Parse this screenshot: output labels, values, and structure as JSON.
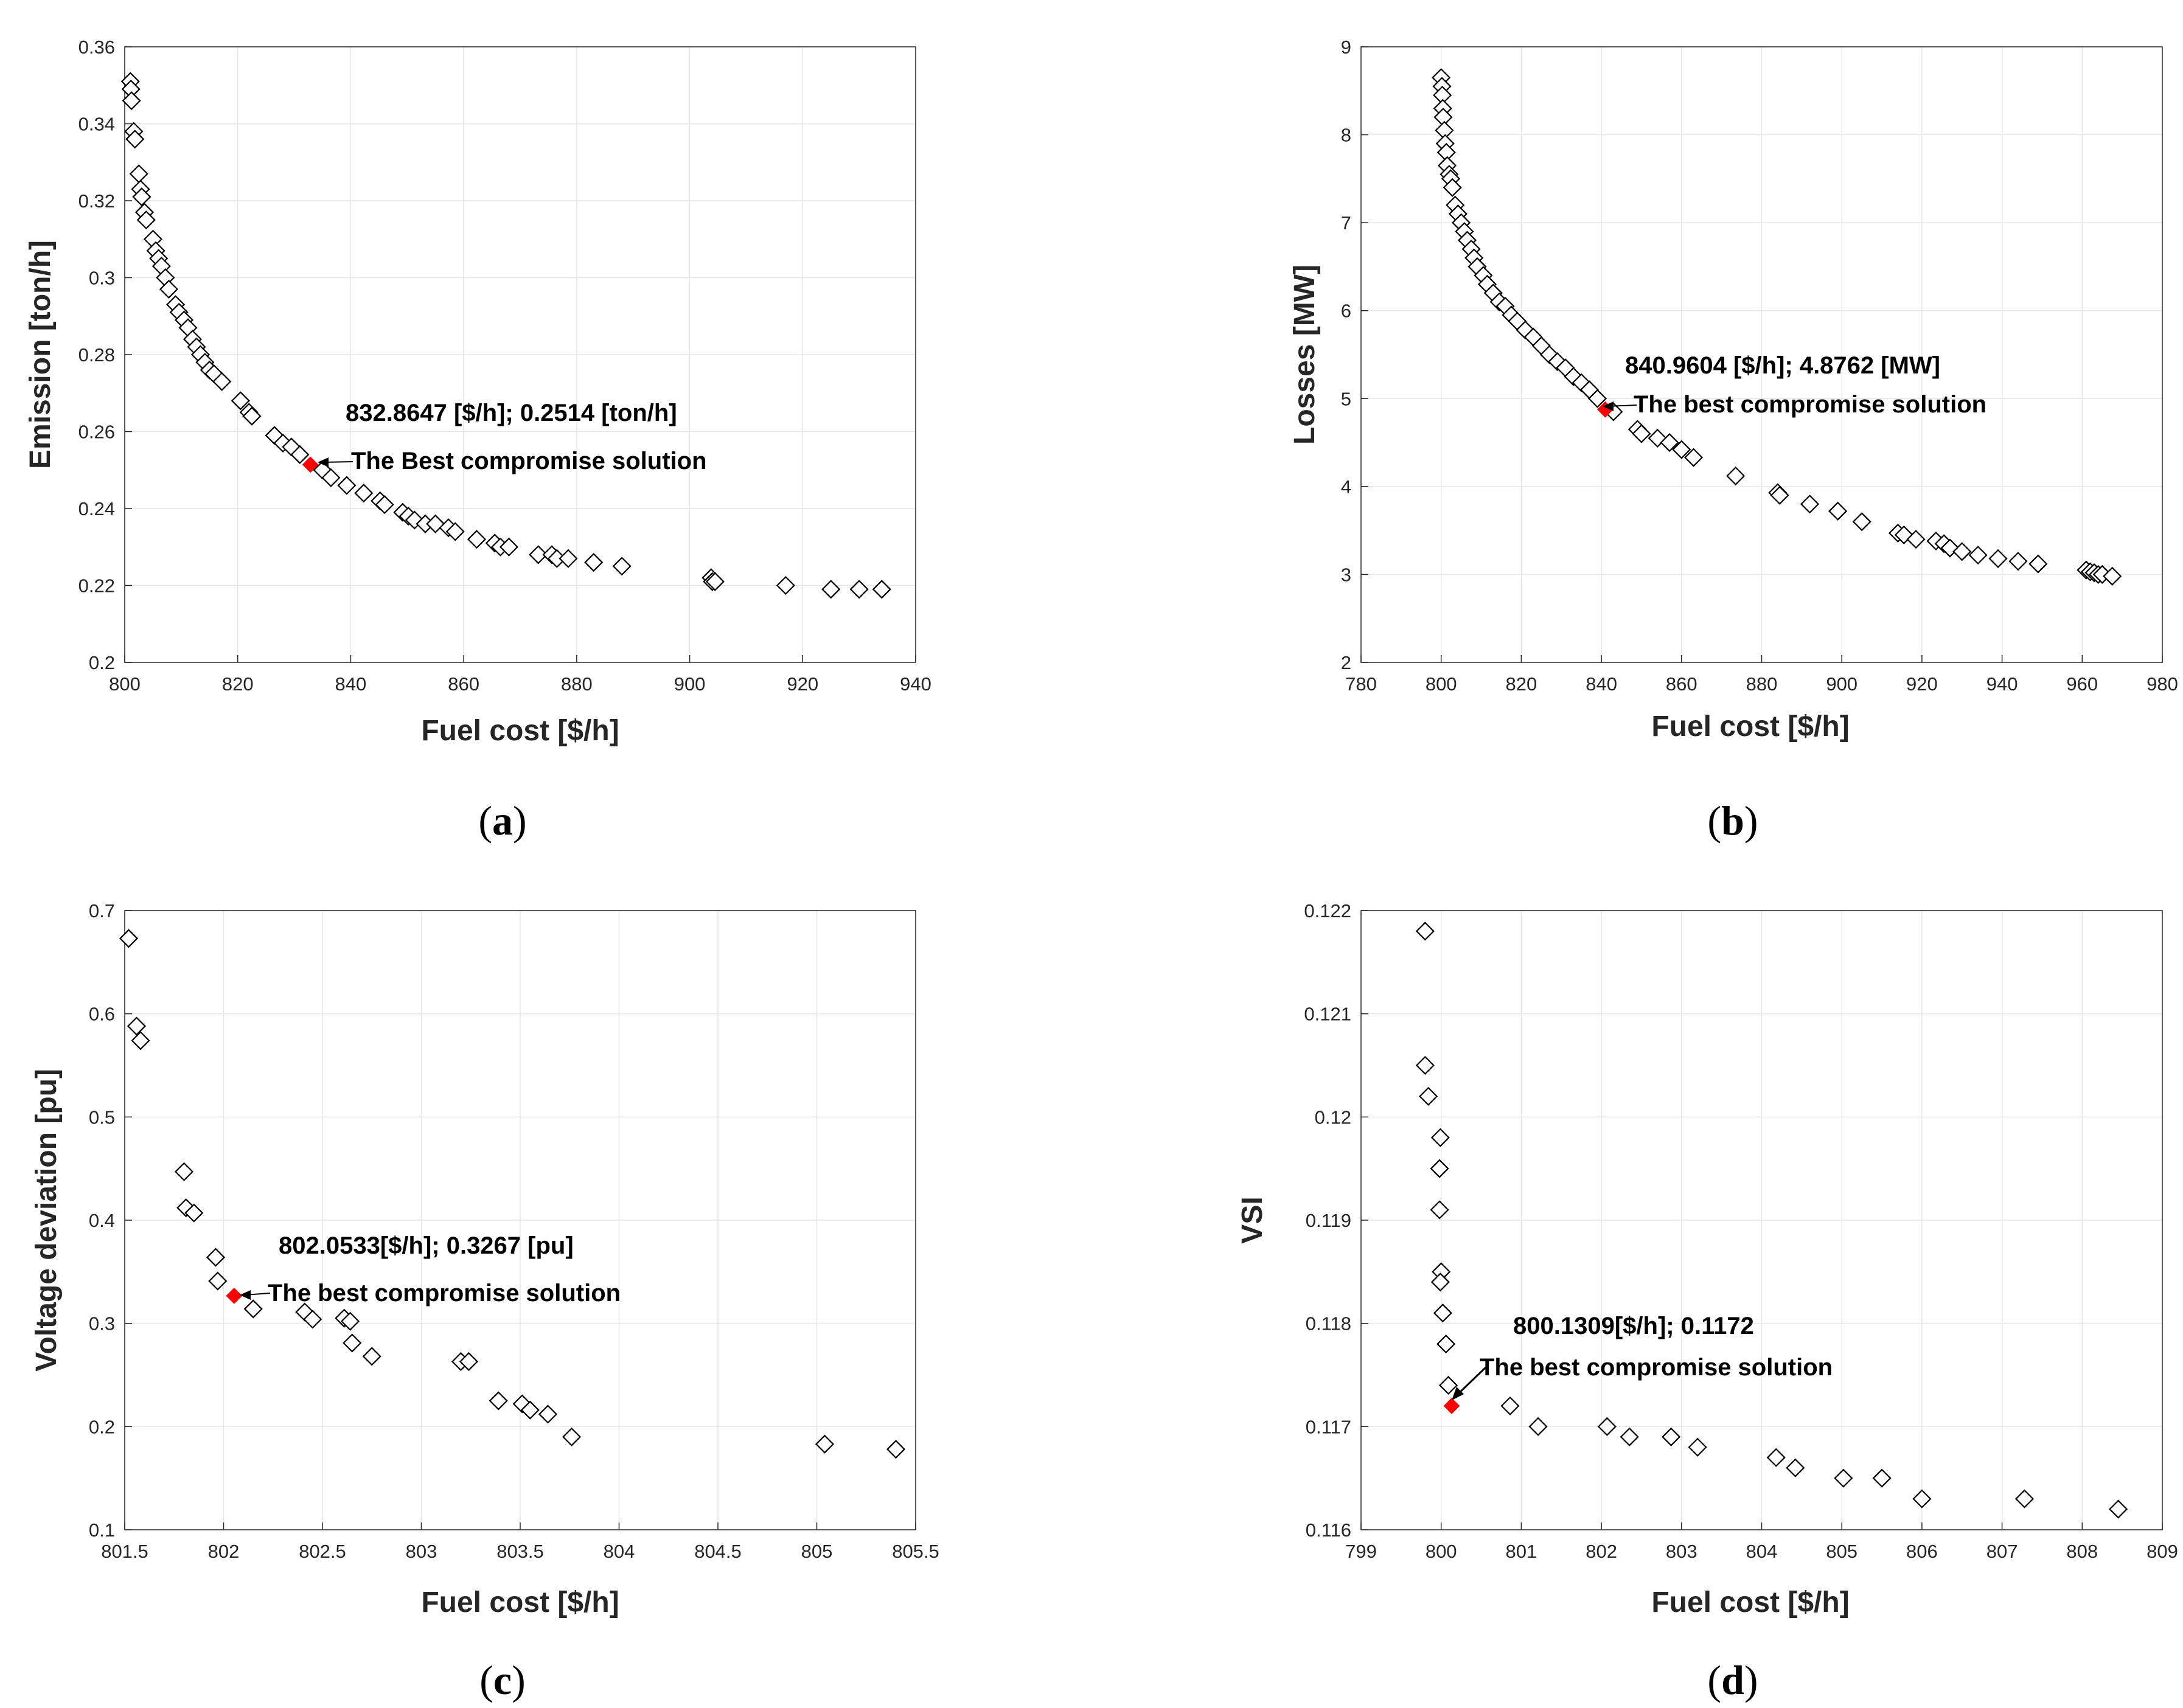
{
  "colors": {
    "marker": "#000000",
    "best": "#ff0000",
    "grid": "#e6e6e6",
    "axis": "#262626"
  },
  "chart_data": [
    {
      "id": "a",
      "type": "scatter",
      "panel_label": "a",
      "xlabel": "Fuel cost [$/h]",
      "ylabel": "Emission [ton/h]",
      "xlim": [
        800,
        940
      ],
      "ylim": [
        0.2,
        0.36
      ],
      "xticks": [
        800,
        820,
        840,
        860,
        880,
        900,
        920,
        940
      ],
      "yticks": [
        0.2,
        0.22,
        0.24,
        0.26,
        0.28,
        0.3,
        0.32,
        0.34,
        0.36
      ],
      "xtick_labels": [
        "800",
        "820",
        "840",
        "860",
        "880",
        "900",
        "920",
        "940"
      ],
      "ytick_labels": [
        "0.2",
        "0.22",
        "0.24",
        "0.26",
        "0.28",
        "0.3",
        "0.32",
        "0.34",
        "0.36"
      ],
      "points": [
        [
          801,
          0.351
        ],
        [
          801.1,
          0.349
        ],
        [
          801.2,
          0.346
        ],
        [
          801.6,
          0.338
        ],
        [
          801.8,
          0.336
        ],
        [
          802.5,
          0.327
        ],
        [
          802.8,
          0.323
        ],
        [
          803,
          0.321
        ],
        [
          803.5,
          0.317
        ],
        [
          803.8,
          0.315
        ],
        [
          805,
          0.31
        ],
        [
          805.5,
          0.307
        ],
        [
          806,
          0.305
        ],
        [
          806.5,
          0.303
        ],
        [
          807.2,
          0.3
        ],
        [
          807.8,
          0.297
        ],
        [
          809,
          0.293
        ],
        [
          809.6,
          0.291
        ],
        [
          810.5,
          0.289
        ],
        [
          811.2,
          0.287
        ],
        [
          812,
          0.284
        ],
        [
          812.7,
          0.282
        ],
        [
          813.4,
          0.28
        ],
        [
          814.2,
          0.278
        ],
        [
          815,
          0.276
        ],
        [
          815.8,
          0.275
        ],
        [
          817.2,
          0.273
        ],
        [
          820.5,
          0.268
        ],
        [
          822,
          0.265
        ],
        [
          822.5,
          0.264
        ],
        [
          826.5,
          0.259
        ],
        [
          828,
          0.257
        ],
        [
          829.5,
          0.256
        ],
        [
          831,
          0.254
        ],
        [
          835,
          0.25
        ],
        [
          836.5,
          0.248
        ],
        [
          839.3,
          0.246
        ],
        [
          842.3,
          0.244
        ],
        [
          845.2,
          0.242
        ],
        [
          846,
          0.241
        ],
        [
          849.2,
          0.239
        ],
        [
          850.2,
          0.238
        ],
        [
          851.3,
          0.237
        ],
        [
          853.2,
          0.236
        ],
        [
          855,
          0.236
        ],
        [
          857.3,
          0.235
        ],
        [
          858.5,
          0.234
        ],
        [
          862.3,
          0.232
        ],
        [
          865.5,
          0.231
        ],
        [
          866.5,
          0.23
        ],
        [
          868,
          0.23
        ],
        [
          873.2,
          0.228
        ],
        [
          875.6,
          0.228
        ],
        [
          876.5,
          0.227
        ],
        [
          878.5,
          0.227
        ],
        [
          883,
          0.226
        ],
        [
          888,
          0.225
        ],
        [
          903.8,
          0.222
        ],
        [
          904,
          0.221
        ],
        [
          904.5,
          0.221
        ],
        [
          917,
          0.22
        ],
        [
          925,
          0.219
        ],
        [
          930,
          0.219
        ],
        [
          934,
          0.219
        ]
      ],
      "best": [
        832.8647,
        0.2514
      ],
      "annotation_value": "832.8647 [$/h]; 0.2514 [ton/h]",
      "annotation_text": "The Best compromise solution"
    },
    {
      "id": "b",
      "type": "scatter",
      "panel_label": "b",
      "xlabel": "Fuel cost [$/h]",
      "ylabel": "Losses [MW]",
      "xlim": [
        780,
        980
      ],
      "ylim": [
        2,
        9
      ],
      "xticks": [
        780,
        800,
        820,
        840,
        860,
        880,
        900,
        920,
        940,
        960,
        980
      ],
      "yticks": [
        2,
        3,
        4,
        5,
        6,
        7,
        8,
        9
      ],
      "xtick_labels": [
        "780",
        "800",
        "820",
        "840",
        "860",
        "880",
        "900",
        "920",
        "940",
        "960",
        "980"
      ],
      "ytick_labels": [
        "2",
        "3",
        "4",
        "5",
        "6",
        "7",
        "8",
        "9"
      ],
      "points": [
        [
          800,
          8.65
        ],
        [
          800.2,
          8.55
        ],
        [
          800.3,
          8.45
        ],
        [
          800.4,
          8.3
        ],
        [
          800.5,
          8.2
        ],
        [
          800.8,
          8.05
        ],
        [
          801,
          7.9
        ],
        [
          801.3,
          7.8
        ],
        [
          801.5,
          7.65
        ],
        [
          802,
          7.55
        ],
        [
          802.4,
          7.5
        ],
        [
          802.8,
          7.4
        ],
        [
          803.5,
          7.2
        ],
        [
          804.2,
          7.1
        ],
        [
          805,
          7.0
        ],
        [
          805.8,
          6.9
        ],
        [
          806.5,
          6.8
        ],
        [
          807.5,
          6.7
        ],
        [
          808.2,
          6.6
        ],
        [
          809,
          6.5
        ],
        [
          810.5,
          6.4
        ],
        [
          811.5,
          6.3
        ],
        [
          813,
          6.2
        ],
        [
          814.5,
          6.1
        ],
        [
          816,
          6.05
        ],
        [
          817.5,
          5.95
        ],
        [
          819,
          5.88
        ],
        [
          821,
          5.78
        ],
        [
          823,
          5.7
        ],
        [
          825,
          5.6
        ],
        [
          827,
          5.5
        ],
        [
          829,
          5.42
        ],
        [
          831,
          5.35
        ],
        [
          833,
          5.25
        ],
        [
          835,
          5.18
        ],
        [
          837,
          5.1
        ],
        [
          839,
          5.0
        ],
        [
          843,
          4.85
        ],
        [
          849,
          4.65
        ],
        [
          850,
          4.6
        ],
        [
          854,
          4.55
        ],
        [
          857,
          4.5
        ],
        [
          860,
          4.42
        ],
        [
          863,
          4.33
        ],
        [
          873.5,
          4.12
        ],
        [
          884,
          3.93
        ],
        [
          884.5,
          3.9
        ],
        [
          892,
          3.8
        ],
        [
          899,
          3.72
        ],
        [
          905,
          3.6
        ],
        [
          914,
          3.47
        ],
        [
          915.5,
          3.45
        ],
        [
          918.5,
          3.4
        ],
        [
          923.5,
          3.38
        ],
        [
          925.5,
          3.35
        ],
        [
          927,
          3.3
        ],
        [
          930,
          3.26
        ],
        [
          934,
          3.22
        ],
        [
          939,
          3.18
        ],
        [
          944,
          3.15
        ],
        [
          949,
          3.12
        ],
        [
          961,
          3.05
        ],
        [
          962,
          3.03
        ],
        [
          963,
          3.02
        ],
        [
          964,
          3.0
        ],
        [
          965,
          3.0
        ],
        [
          967.5,
          2.98
        ]
      ],
      "best": [
        840.9604,
        4.8762
      ],
      "annotation_value": "840.9604 [$/h]; 4.8762 [MW]",
      "annotation_text": "The best compromise solution"
    },
    {
      "id": "c",
      "type": "scatter",
      "panel_label": "c",
      "xlabel": "Fuel cost [$/h]",
      "ylabel": "Voltage deviation [pu]",
      "xlim": [
        801.5,
        805.5
      ],
      "ylim": [
        0.1,
        0.7
      ],
      "xticks": [
        801.5,
        802,
        802.5,
        803,
        803.5,
        804,
        804.5,
        805,
        805.5
      ],
      "yticks": [
        0.1,
        0.2,
        0.3,
        0.4,
        0.5,
        0.6,
        0.7
      ],
      "xtick_labels": [
        "801.5",
        "802",
        "802.5",
        "803",
        "803.5",
        "804",
        "804.5",
        "805",
        "805.5"
      ],
      "ytick_labels": [
        "0.1",
        "0.2",
        "0.3",
        "0.4",
        "0.5",
        "0.6",
        "0.7"
      ],
      "points": [
        [
          801.52,
          0.673
        ],
        [
          801.56,
          0.588
        ],
        [
          801.58,
          0.574
        ],
        [
          801.8,
          0.447
        ],
        [
          801.81,
          0.412
        ],
        [
          801.85,
          0.407
        ],
        [
          801.96,
          0.364
        ],
        [
          801.97,
          0.341
        ],
        [
          802.15,
          0.314
        ],
        [
          802.41,
          0.311
        ],
        [
          802.45,
          0.304
        ],
        [
          802.61,
          0.305
        ],
        [
          802.64,
          0.302
        ],
        [
          802.65,
          0.281
        ],
        [
          802.75,
          0.268
        ],
        [
          803.2,
          0.263
        ],
        [
          803.24,
          0.263
        ],
        [
          803.39,
          0.225
        ],
        [
          803.51,
          0.222
        ],
        [
          803.55,
          0.216
        ],
        [
          803.64,
          0.212
        ],
        [
          803.76,
          0.19
        ],
        [
          805.04,
          0.183
        ],
        [
          805.4,
          0.178
        ]
      ],
      "best": [
        802.0533,
        0.3267
      ],
      "annotation_value": "802.0533[$/h]; 0.3267 [pu]",
      "annotation_text": "The best compromise solution"
    },
    {
      "id": "d",
      "type": "scatter",
      "panel_label": "d",
      "xlabel": "Fuel cost [$/h]",
      "ylabel": "VSI",
      "xlim": [
        799,
        809
      ],
      "ylim": [
        0.116,
        0.122
      ],
      "xticks": [
        799,
        800,
        801,
        802,
        803,
        804,
        805,
        806,
        807,
        808,
        809
      ],
      "yticks": [
        0.116,
        0.117,
        0.118,
        0.119,
        0.12,
        0.121,
        0.122
      ],
      "xtick_labels": [
        "799",
        "800",
        "801",
        "802",
        "803",
        "804",
        "805",
        "806",
        "807",
        "808",
        "809"
      ],
      "ytick_labels": [
        "0.116",
        "0.117",
        "0.118",
        "0.119",
        "0.12",
        "0.121",
        "0.122"
      ],
      "points": [
        [
          799.8,
          0.1218
        ],
        [
          799.8,
          0.1205
        ],
        [
          799.84,
          0.1202
        ],
        [
          799.99,
          0.1198
        ],
        [
          799.98,
          0.1195
        ],
        [
          799.98,
          0.1191
        ],
        [
          800,
          0.1185
        ],
        [
          799.99,
          0.1184
        ],
        [
          800.02,
          0.1181
        ],
        [
          800.06,
          0.1178
        ],
        [
          800.09,
          0.1174
        ],
        [
          800.86,
          0.1172
        ],
        [
          801.21,
          0.117
        ],
        [
          802.07,
          0.117
        ],
        [
          802.35,
          0.1169
        ],
        [
          802.87,
          0.1169
        ],
        [
          803.2,
          0.1168
        ],
        [
          804.18,
          0.1167
        ],
        [
          804.42,
          0.1166
        ],
        [
          805.02,
          0.1165
        ],
        [
          805.5,
          0.1165
        ],
        [
          806,
          0.1163
        ],
        [
          807.28,
          0.1163
        ],
        [
          808.45,
          0.1162
        ]
      ],
      "best": [
        800.1309,
        0.1172
      ],
      "annotation_value": "800.1309[$/h]; 0.1172",
      "annotation_text": "The best compromise solution"
    }
  ]
}
